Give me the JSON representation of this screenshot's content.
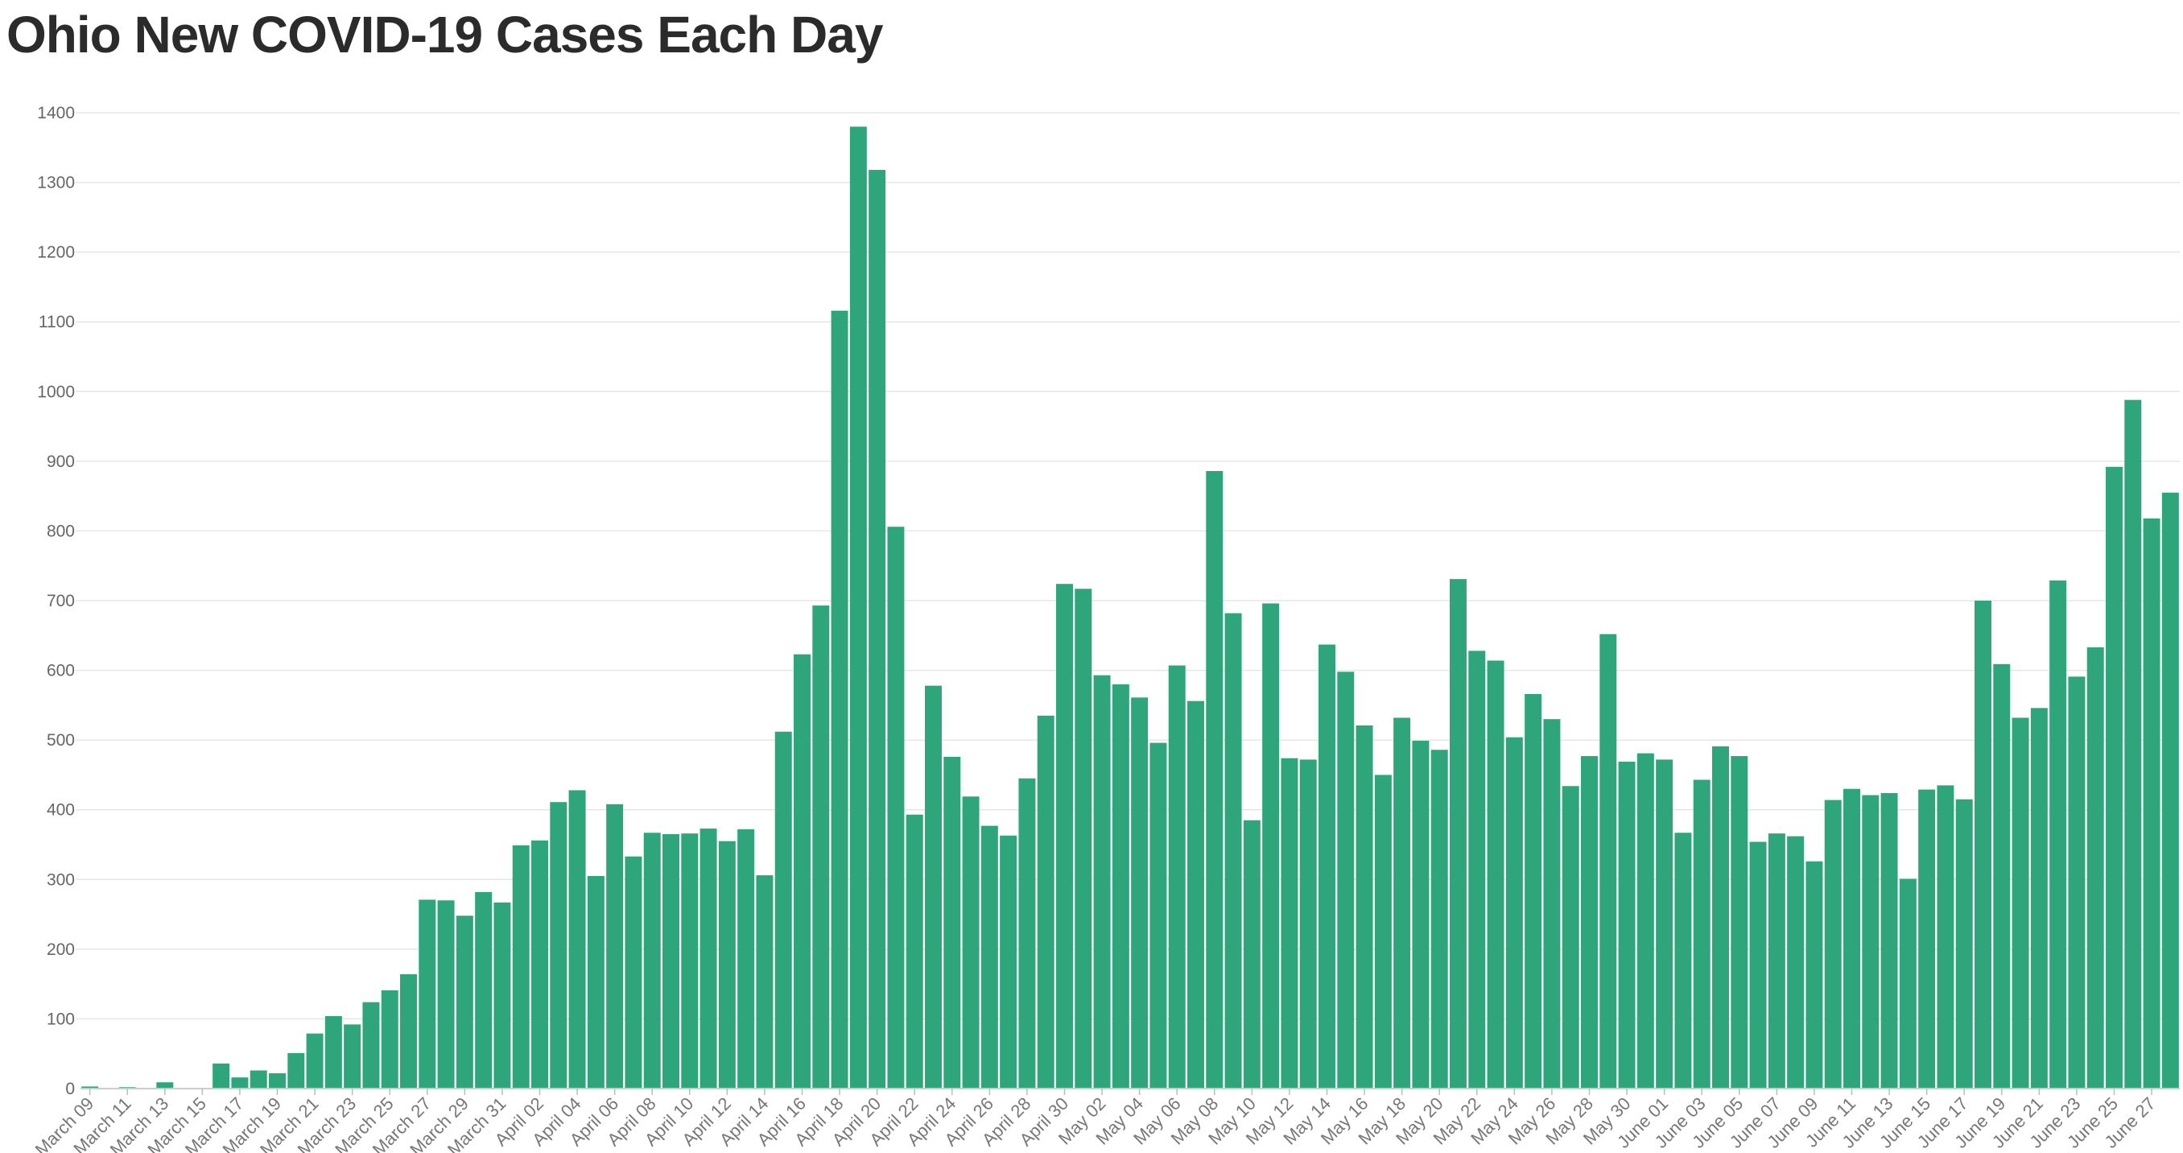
{
  "chart_data": {
    "type": "bar",
    "title": "Ohio New COVID-19 Cases Each Day",
    "xlabel": "",
    "ylabel": "",
    "ylim": [
      0,
      1400
    ],
    "yticks": [
      0,
      100,
      200,
      300,
      400,
      500,
      600,
      700,
      800,
      900,
      1000,
      1100,
      1200,
      1300,
      1400
    ],
    "grid": true,
    "bar_color": "#2ea57b",
    "categories": [
      "March 09",
      "March 10",
      "March 11",
      "March 12",
      "March 13",
      "March 14",
      "March 15",
      "March 16",
      "March 17",
      "March 18",
      "March 19",
      "March 20",
      "March 21",
      "March 22",
      "March 23",
      "March 24",
      "March 25",
      "March 26",
      "March 27",
      "March 28",
      "March 29",
      "March 30",
      "March 31",
      "April 01",
      "April 02",
      "April 03",
      "April 04",
      "April 05",
      "April 06",
      "April 07",
      "April 08",
      "April 09",
      "April 10",
      "April 11",
      "April 12",
      "April 13",
      "April 14",
      "April 15",
      "April 16",
      "April 17",
      "April 18",
      "April 19",
      "April 20",
      "April 21",
      "April 22",
      "April 23",
      "April 24",
      "April 25",
      "April 26",
      "April 27",
      "April 28",
      "April 29",
      "April 30",
      "May 01",
      "May 02",
      "May 03",
      "May 04",
      "May 05",
      "May 06",
      "May 07",
      "May 08",
      "May 09",
      "May 10",
      "May 11",
      "May 12",
      "May 13",
      "May 14",
      "May 15",
      "May 16",
      "May 17",
      "May 18",
      "May 19",
      "May 20",
      "May 21",
      "May 22",
      "May 23",
      "May 24",
      "May 25",
      "May 26",
      "May 27",
      "May 28",
      "May 29",
      "May 30",
      "May 31",
      "June 01",
      "June 02",
      "June 03",
      "June 04",
      "June 05",
      "June 06",
      "June 07",
      "June 08",
      "June 09",
      "June 10",
      "June 11",
      "June 12",
      "June 13",
      "June 14",
      "June 15",
      "June 16",
      "June 17",
      "June 18",
      "June 19",
      "June 20",
      "June 21",
      "June 22",
      "June 23",
      "June 24",
      "June 25",
      "June 26",
      "June 27",
      "June 28"
    ],
    "tick_labels": [
      "March 09",
      "March 11",
      "March 13",
      "March 15",
      "March 17",
      "March 19",
      "March 21",
      "March 23",
      "March 25",
      "March 27",
      "March 29",
      "March 31",
      "April 02",
      "April 04",
      "April 06",
      "April 08",
      "April 10",
      "April 12",
      "April 14",
      "April 16",
      "April 18",
      "April 20",
      "April 22",
      "April 24",
      "April 26",
      "April 28",
      "April 30",
      "May 02",
      "May 04",
      "May 06",
      "May 08",
      "May 10",
      "May 12",
      "May 14",
      "May 16",
      "May 18",
      "May 20",
      "May 22",
      "May 24",
      "May 26",
      "May 28",
      "May 30",
      "June 01",
      "June 03",
      "June 05",
      "June 07",
      "June 09",
      "June 11",
      "June 13",
      "June 15",
      "June 17",
      "June 19",
      "June 21",
      "June 23",
      "June 25",
      "June 27"
    ],
    "values": [
      3,
      0,
      2,
      0,
      9,
      0,
      0,
      36,
      16,
      26,
      22,
      51,
      79,
      104,
      92,
      124,
      141,
      164,
      271,
      270,
      248,
      282,
      267,
      349,
      356,
      411,
      428,
      305,
      408,
      333,
      367,
      365,
      366,
      373,
      355,
      372,
      306,
      512,
      623,
      693,
      1116,
      1380,
      1318,
      806,
      393,
      578,
      476,
      419,
      377,
      363,
      445,
      535,
      724,
      717,
      593,
      580,
      561,
      496,
      607,
      556,
      886,
      682,
      385,
      696,
      474,
      472,
      637,
      598,
      521,
      450,
      532,
      499,
      486,
      731,
      628,
      614,
      504,
      566,
      530,
      434,
      477,
      652,
      469,
      481,
      472,
      367,
      443,
      491,
      477,
      354,
      366,
      362,
      326,
      414,
      430,
      421,
      424,
      301,
      429,
      435,
      415,
      700,
      609,
      532,
      546,
      729,
      591,
      633,
      892,
      988,
      818,
      855
    ]
  }
}
